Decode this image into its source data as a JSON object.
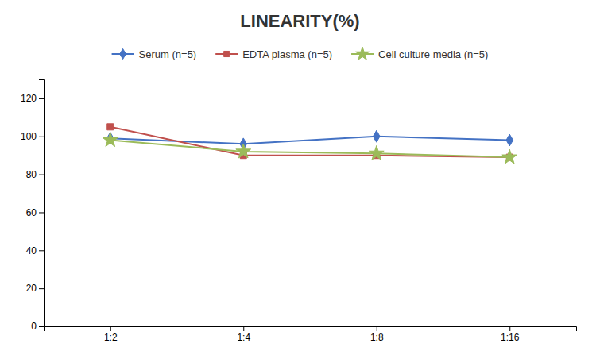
{
  "chart_data": {
    "type": "line",
    "title": "LINEARITY(%)",
    "categories": [
      "1:2",
      "1:4",
      "1:8",
      "1:16"
    ],
    "series": [
      {
        "name": "Serum (n=5)",
        "color": "#4472C4",
        "marker": "diamond",
        "values": [
          99,
          96,
          100,
          98
        ]
      },
      {
        "name": "EDTA plasma (n=5)",
        "color": "#C0504D",
        "marker": "square",
        "values": [
          105,
          90,
          90,
          89
        ]
      },
      {
        "name": "Cell culture media (n=5)",
        "color": "#9BBB59",
        "marker": "star",
        "values": [
          98,
          92,
          91,
          89
        ]
      }
    ],
    "ylim": [
      0,
      130
    ],
    "yticks": [
      0,
      20,
      40,
      60,
      80,
      100,
      120
    ],
    "grid": false,
    "legend": "top"
  }
}
